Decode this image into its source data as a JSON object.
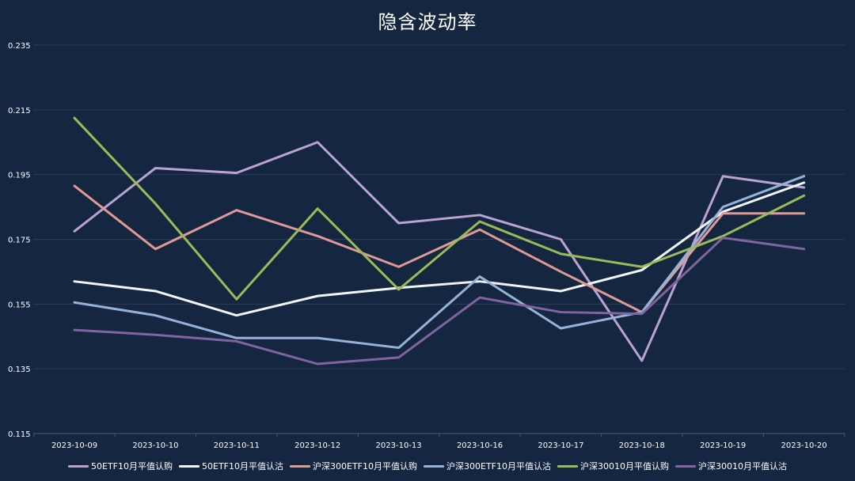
{
  "chart_data": {
    "type": "line",
    "title": "隐含波动率",
    "xlabel": "",
    "ylabel": "",
    "categories": [
      "2023-10-09",
      "2023-10-10",
      "2023-10-11",
      "2023-10-12",
      "2023-10-13",
      "2023-10-16",
      "2023-10-17",
      "2023-10-18",
      "2023-10-19",
      "2023-10-20"
    ],
    "ylim": [
      0.115,
      0.235
    ],
    "yticks": [
      "0.115",
      "0.135",
      "0.155",
      "0.175",
      "0.195",
      "0.215",
      "0.235"
    ],
    "grid": true,
    "legend_position": "bottom",
    "background": "#142640",
    "series": [
      {
        "name": "50ETF10月平值认购",
        "color": "#b9a3d3",
        "values": [
          0.1775,
          0.197,
          0.1955,
          0.205,
          0.18,
          0.1825,
          0.175,
          0.1375,
          0.1945,
          0.191
        ]
      },
      {
        "name": "50ETF10月平值认沽",
        "color": "#f2f4f7",
        "values": [
          0.162,
          0.159,
          0.1515,
          0.1575,
          0.16,
          0.162,
          0.159,
          0.1655,
          0.1835,
          0.1925
        ]
      },
      {
        "name": "沪深300ETF10月平值认购",
        "color": "#e09a96",
        "values": [
          0.1915,
          0.172,
          0.184,
          0.176,
          0.1665,
          0.178,
          0.165,
          0.1525,
          0.183,
          0.183
        ]
      },
      {
        "name": "沪深300ETF10月平值认沽",
        "color": "#95b3d9",
        "values": [
          0.1555,
          0.1515,
          0.1445,
          0.1445,
          0.1415,
          0.1635,
          0.1475,
          0.1525,
          0.185,
          0.1945
        ]
      },
      {
        "name": "沪深30010月平值认购",
        "color": "#9bbb59",
        "values": [
          0.2125,
          0.186,
          0.1565,
          0.1845,
          0.1595,
          0.1805,
          0.1705,
          0.1665,
          0.176,
          0.1885
        ]
      },
      {
        "name": "沪深30010月平值认沽",
        "color": "#8064a2",
        "values": [
          0.147,
          0.1455,
          0.1435,
          0.1365,
          0.1385,
          0.157,
          0.1525,
          0.152,
          0.1755,
          0.172
        ]
      }
    ]
  }
}
